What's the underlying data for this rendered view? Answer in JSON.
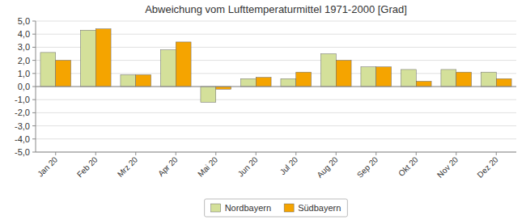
{
  "chart_data": {
    "type": "bar",
    "title": "Abweichung vom Lufttemperaturmittel 1971-2000 [Grad]",
    "categories": [
      "Jan 20",
      "Feb 20",
      "Mrz 20",
      "Apr 20",
      "Mai 20",
      "Jun 20",
      "Jul 20",
      "Aug 20",
      "Sep 20",
      "Okt 20",
      "Nov 20",
      "Dez 20"
    ],
    "series": [
      {
        "name": "Nordbayern",
        "color": "#d4e09a",
        "values": [
          2.6,
          4.3,
          0.9,
          2.8,
          -1.2,
          0.6,
          0.6,
          2.5,
          1.5,
          1.3,
          1.3,
          1.1
        ]
      },
      {
        "name": "Südbayern",
        "color": "#f5a400",
        "values": [
          2.0,
          4.4,
          0.9,
          3.4,
          -0.2,
          0.7,
          1.1,
          2.0,
          1.5,
          0.4,
          1.1,
          0.6
        ]
      }
    ],
    "ylim": [
      -5.0,
      5.0
    ],
    "yticks": [
      {
        "value": -5.0,
        "label": "-5,0"
      },
      {
        "value": -4.0,
        "label": "-4,0"
      },
      {
        "value": -3.0,
        "label": "-3,0"
      },
      {
        "value": -2.0,
        "label": "-2,0"
      },
      {
        "value": -1.0,
        "label": "-1,0"
      },
      {
        "value": 0.0,
        "label": "0,0"
      },
      {
        "value": 1.0,
        "label": "1,0"
      },
      {
        "value": 2.0,
        "label": "2,0"
      },
      {
        "value": 3.0,
        "label": "3,0"
      },
      {
        "value": 4.0,
        "label": "4,0"
      },
      {
        "value": 5.0,
        "label": "5,0"
      }
    ],
    "grid": true,
    "legend": "bottom"
  }
}
